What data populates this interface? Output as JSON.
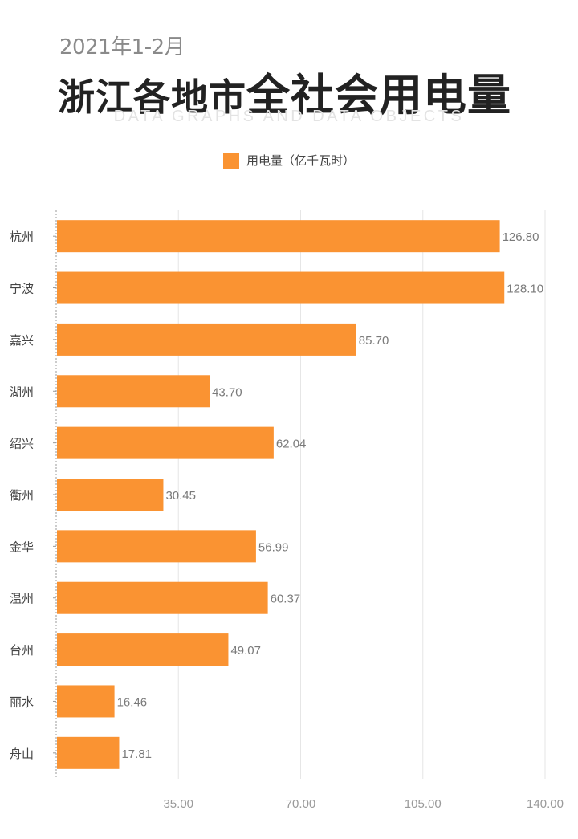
{
  "header": {
    "date_label": "2021年1-2月",
    "title_part1": "浙江各地市",
    "title_part2": "全社会用电量",
    "english_subtitle": "DATA GRAPHS AND DATA OBJECTS"
  },
  "colors": {
    "bar": "#FA9332",
    "label": "#7a7a7a",
    "grid": "#e6e6e6"
  },
  "chart_data": {
    "type": "bar",
    "orientation": "horizontal",
    "title": "浙江各地市全社会用电量",
    "subtitle": "2021年1-2月",
    "categories": [
      "杭州",
      "宁波",
      "嘉兴",
      "湖州",
      "绍兴",
      "衢州",
      "金华",
      "温州",
      "台州",
      "丽水",
      "舟山"
    ],
    "series": [
      {
        "name": "用电量（亿千瓦时）",
        "values": [
          126.8,
          128.1,
          85.7,
          43.7,
          62.04,
          30.45,
          56.99,
          60.37,
          49.07,
          16.46,
          17.81
        ],
        "labels": [
          "126.80",
          "128.10",
          "85.70",
          "43.70",
          "62.04",
          "30.45",
          "56.99",
          "60.37",
          "49.07",
          "16.46",
          "17.81"
        ]
      }
    ],
    "xlim": [
      0,
      140
    ],
    "xticks": [
      35,
      70,
      105,
      140
    ],
    "xtick_labels": [
      "35.00",
      "70.00",
      "105.00",
      "140.00"
    ],
    "grid": true,
    "legend_position": "top-center"
  }
}
